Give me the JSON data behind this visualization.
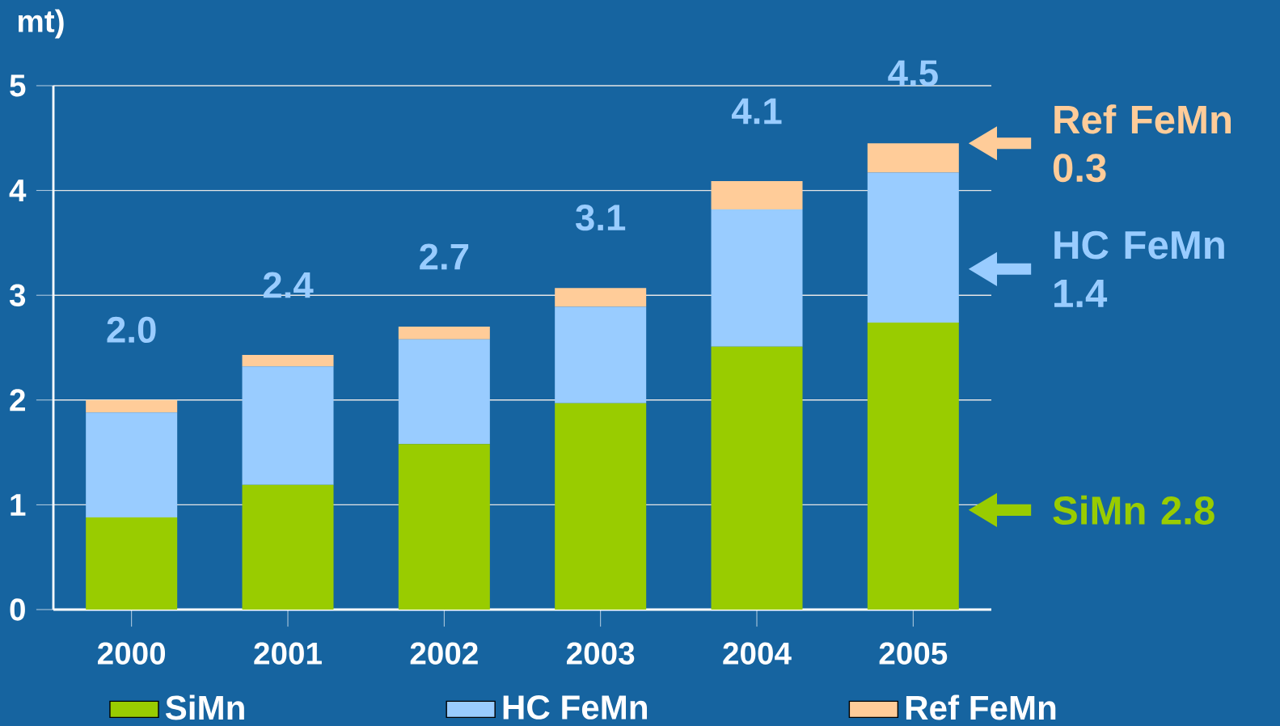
{
  "chart_data": {
    "type": "bar",
    "stacked": true,
    "ylabel": "mt)",
    "categories": [
      "2000",
      "2001",
      "2002",
      "2003",
      "2004",
      "2005"
    ],
    "series": [
      {
        "name": "SiMn",
        "color": "#99cc00",
        "values": [
          0.88,
          1.19,
          1.58,
          1.97,
          2.51,
          2.74
        ]
      },
      {
        "name": "HC FeMn",
        "color": "#99ccff",
        "values": [
          1.0,
          1.13,
          1.0,
          0.92,
          1.31,
          1.43
        ]
      },
      {
        "name": "Ref FeMn",
        "color": "#ffcc99",
        "values": [
          0.12,
          0.11,
          0.12,
          0.18,
          0.27,
          0.28
        ]
      }
    ],
    "totals": [
      "2.0",
      "2.4",
      "2.7",
      "3.1",
      "4.1",
      "4.5"
    ],
    "annotations": [
      "Ref FeMn 0.3",
      "HC FeMn 1.4",
      "SiMn 2.8"
    ],
    "ylim": [
      0,
      5
    ],
    "yticks": [
      0,
      1,
      2,
      3,
      4,
      5
    ],
    "grid": "y",
    "legend": "bottom"
  }
}
